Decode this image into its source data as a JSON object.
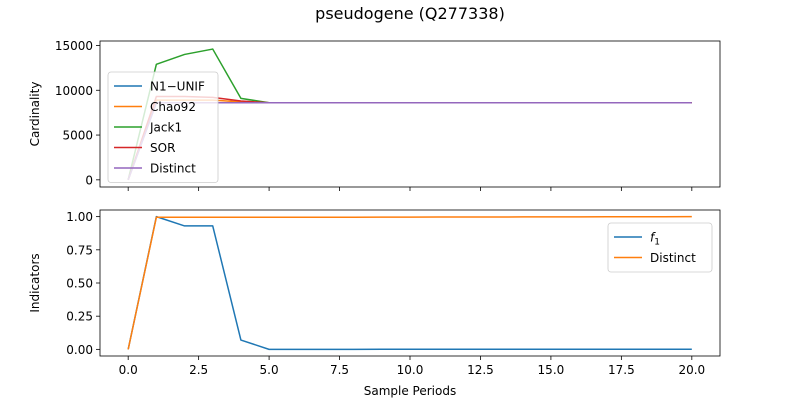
{
  "title": "pseudogene (Q277338)",
  "chart_data": [
    {
      "type": "line",
      "ylabel": "Cardinality",
      "xlim": [
        -1,
        21
      ],
      "ylim": [
        -800,
        15500
      ],
      "xticks": [
        0,
        2.5,
        5,
        7.5,
        10,
        12.5,
        15,
        17.5,
        20
      ],
      "yticks": [
        0,
        5000,
        10000,
        15000
      ],
      "ytick_labels": [
        "0",
        "5000",
        "10000",
        "15000"
      ],
      "legend_position": "upper-left",
      "x": [
        0,
        1,
        2,
        3,
        4,
        5,
        6,
        7,
        8,
        9,
        10,
        11,
        12,
        13,
        14,
        15,
        16,
        17,
        18,
        19,
        20
      ],
      "series": [
        {
          "name": "N1−UNIF",
          "color": "#1f77b4",
          "values": [
            0,
            8600,
            8600,
            8600,
            8600,
            8600,
            8600,
            8600,
            8600,
            8600,
            8600,
            8600,
            8600,
            8600,
            8600,
            8600,
            8600,
            8600,
            8600,
            8600,
            8600
          ]
        },
        {
          "name": "Chao92",
          "color": "#ff7f0e",
          "values": [
            0,
            8900,
            8900,
            8900,
            8700,
            8600,
            8600,
            8600,
            8600,
            8600,
            8600,
            8600,
            8600,
            8600,
            8600,
            8600,
            8600,
            8600,
            8600,
            8600,
            8600
          ]
        },
        {
          "name": "Jack1",
          "color": "#2ca02c",
          "values": [
            0,
            12900,
            14000,
            14600,
            9100,
            8600,
            8600,
            8600,
            8600,
            8600,
            8600,
            8600,
            8600,
            8600,
            8600,
            8600,
            8600,
            8600,
            8600,
            8600,
            8600
          ]
        },
        {
          "name": "SOR",
          "color": "#d62728",
          "values": [
            0,
            9300,
            9300,
            9200,
            8800,
            8600,
            8600,
            8600,
            8600,
            8600,
            8600,
            8600,
            8600,
            8600,
            8600,
            8600,
            8600,
            8600,
            8600,
            8600,
            8600
          ]
        },
        {
          "name": "Distinct",
          "color": "#9467bd",
          "values": [
            0,
            8600,
            8600,
            8600,
            8600,
            8600,
            8600,
            8600,
            8600,
            8600,
            8600,
            8600,
            8600,
            8600,
            8600,
            8600,
            8600,
            8600,
            8600,
            8600,
            8600
          ]
        }
      ]
    },
    {
      "type": "line",
      "ylabel": "Indicators",
      "xlabel": "Sample Periods",
      "xlim": [
        -1,
        21
      ],
      "ylim": [
        -0.05,
        1.05
      ],
      "xticks": [
        0,
        2.5,
        5,
        7.5,
        10,
        12.5,
        15,
        17.5,
        20
      ],
      "xtick_labels": [
        "0.0",
        "2.5",
        "5.0",
        "7.5",
        "10.0",
        "12.5",
        "15.0",
        "17.5",
        "20.0"
      ],
      "yticks": [
        0,
        0.25,
        0.5,
        0.75,
        1.0
      ],
      "ytick_labels": [
        "0.00",
        "0.25",
        "0.50",
        "0.75",
        "1.00"
      ],
      "legend_position": "upper-right",
      "x": [
        0,
        1,
        2,
        3,
        4,
        5,
        6,
        7,
        8,
        9,
        10,
        11,
        12,
        13,
        14,
        15,
        16,
        17,
        18,
        19,
        20
      ],
      "series": [
        {
          "name": "f1",
          "color": "#1f77b4",
          "values": [
            0,
            1.0,
            0.93,
            0.93,
            0.07,
            0.0,
            0.0,
            0.0,
            0.0,
            0.001,
            0.001,
            0.001,
            0.001,
            0.001,
            0.001,
            0.001,
            0.001,
            0.001,
            0.001,
            0.001,
            0.001
          ]
        },
        {
          "name": "Distinct",
          "color": "#ff7f0e",
          "values": [
            0,
            0.995,
            0.995,
            0.995,
            0.995,
            0.995,
            0.995,
            0.995,
            0.995,
            0.996,
            0.996,
            0.997,
            0.997,
            0.997,
            0.998,
            0.998,
            0.998,
            0.999,
            0.999,
            0.999,
            1.0
          ]
        }
      ]
    }
  ]
}
